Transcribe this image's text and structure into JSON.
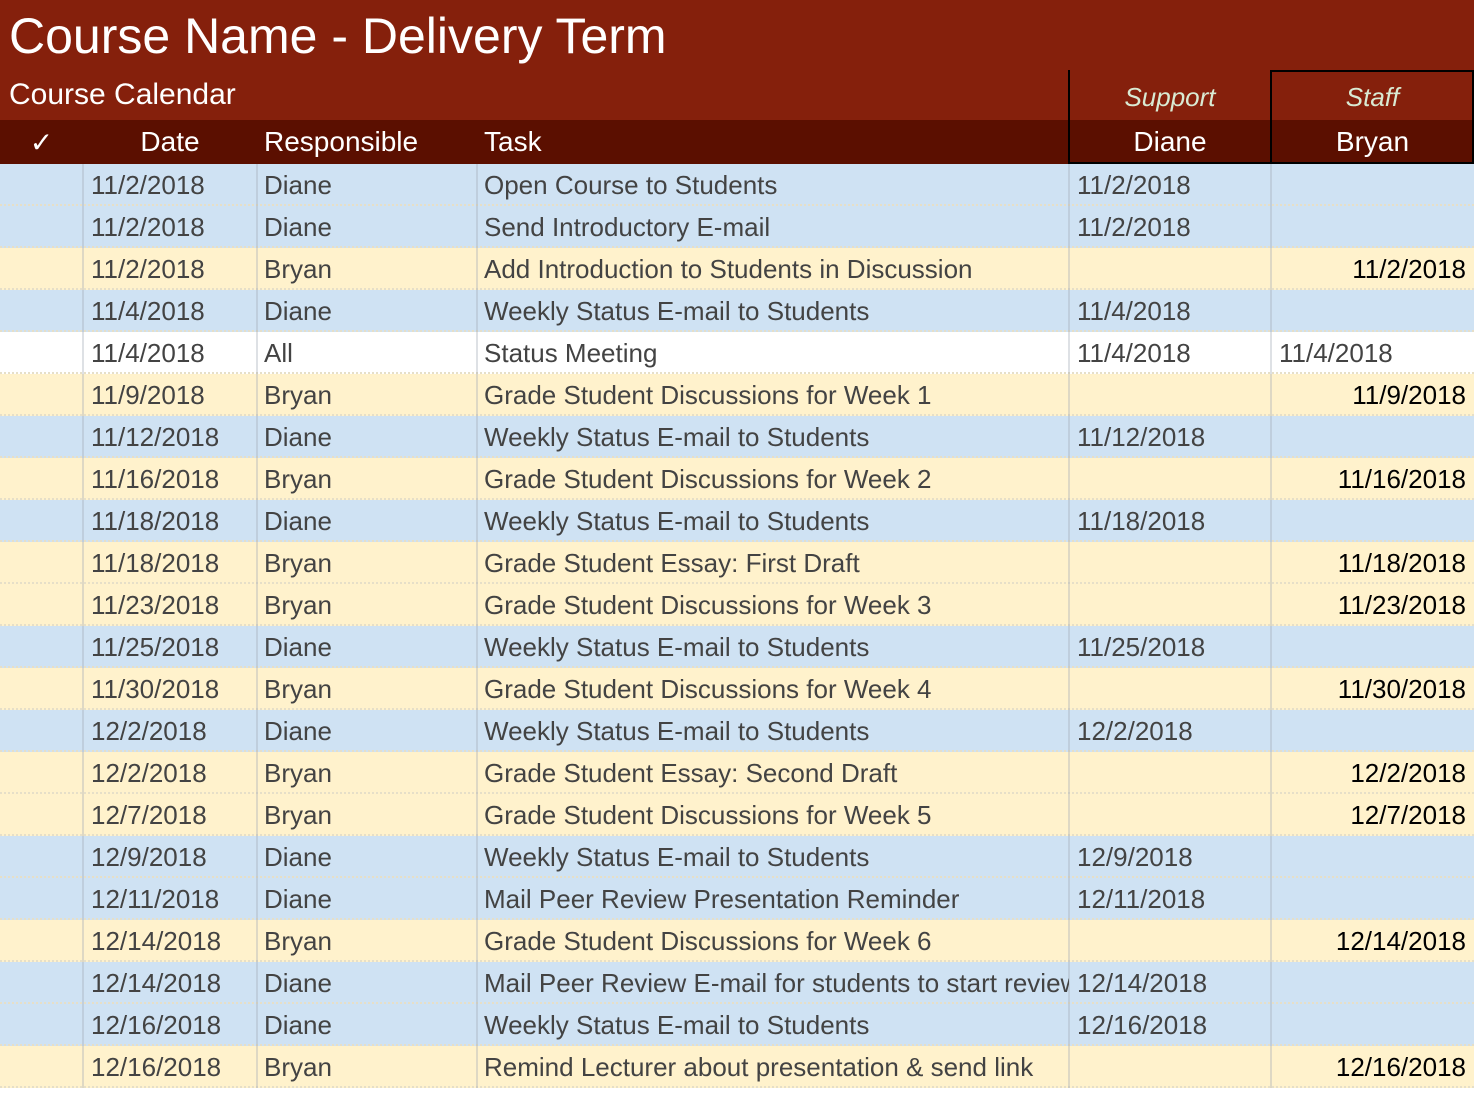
{
  "title": "Course Name - Delivery Term",
  "subtitle": "Course Calendar",
  "group_labels": {
    "support": "Support",
    "staff": "Staff"
  },
  "columns": {
    "check": "✓",
    "date": "Date",
    "responsible": "Responsible",
    "task": "Task",
    "support": "Diane",
    "staff": "Bryan"
  },
  "colors": {
    "title_bg": "#85200c",
    "header_bg": "#5b0f00",
    "diane_row": "#cfe2f3",
    "bryan_row": "#fff2cc",
    "all_row": "#ffffff"
  },
  "rows": [
    {
      "date": "11/2/2018",
      "responsible": "Diane",
      "task": "Open Course to Students",
      "support": "11/2/2018",
      "staff": ""
    },
    {
      "date": "11/2/2018",
      "responsible": "Diane",
      "task": "Send Introductory E-mail",
      "support": "11/2/2018",
      "staff": ""
    },
    {
      "date": "11/2/2018",
      "responsible": "Bryan",
      "task": "Add Introduction to Students in Discussion",
      "support": "",
      "staff": "11/2/2018"
    },
    {
      "date": "11/4/2018",
      "responsible": "Diane",
      "task": "Weekly Status E-mail to Students",
      "support": "11/4/2018",
      "staff": ""
    },
    {
      "date": "11/4/2018",
      "responsible": "All",
      "task": "Status Meeting",
      "support": "11/4/2018",
      "staff": "11/4/2018"
    },
    {
      "date": "11/9/2018",
      "responsible": "Bryan",
      "task": "Grade Student Discussions for Week 1",
      "support": "",
      "staff": "11/9/2018"
    },
    {
      "date": "11/12/2018",
      "responsible": "Diane",
      "task": "Weekly Status E-mail to Students",
      "support": "11/12/2018",
      "staff": ""
    },
    {
      "date": "11/16/2018",
      "responsible": "Bryan",
      "task": "Grade Student Discussions for Week 2",
      "support": "",
      "staff": "11/16/2018"
    },
    {
      "date": "11/18/2018",
      "responsible": "Diane",
      "task": "Weekly Status E-mail to Students",
      "support": "11/18/2018",
      "staff": ""
    },
    {
      "date": "11/18/2018",
      "responsible": "Bryan",
      "task": "Grade Student Essay: First Draft",
      "support": "",
      "staff": "11/18/2018"
    },
    {
      "date": "11/23/2018",
      "responsible": "Bryan",
      "task": "Grade Student Discussions for Week 3",
      "support": "",
      "staff": "11/23/2018"
    },
    {
      "date": "11/25/2018",
      "responsible": "Diane",
      "task": "Weekly Status E-mail to Students",
      "support": "11/25/2018",
      "staff": ""
    },
    {
      "date": "11/30/2018",
      "responsible": "Bryan",
      "task": "Grade Student Discussions for Week 4",
      "support": "",
      "staff": "11/30/2018"
    },
    {
      "date": "12/2/2018",
      "responsible": "Diane",
      "task": "Weekly Status E-mail to Students",
      "support": "12/2/2018",
      "staff": ""
    },
    {
      "date": "12/2/2018",
      "responsible": "Bryan",
      "task": "Grade Student Essay: Second Draft",
      "support": "",
      "staff": "12/2/2018"
    },
    {
      "date": "12/7/2018",
      "responsible": "Bryan",
      "task": "Grade Student Discussions for Week 5",
      "support": "",
      "staff": "12/7/2018"
    },
    {
      "date": "12/9/2018",
      "responsible": "Diane",
      "task": "Weekly Status E-mail to Students",
      "support": "12/9/2018",
      "staff": ""
    },
    {
      "date": "12/11/2018",
      "responsible": "Diane",
      "task": "Mail Peer Review Presentation Reminder",
      "support": "12/11/2018",
      "staff": ""
    },
    {
      "date": "12/14/2018",
      "responsible": "Bryan",
      "task": "Grade Student Discussions for Week 6",
      "support": "",
      "staff": "12/14/2018"
    },
    {
      "date": "12/14/2018",
      "responsible": "Diane",
      "task": "Mail Peer Review E-mail for students to start review",
      "support": "12/14/2018",
      "staff": ""
    },
    {
      "date": "12/16/2018",
      "responsible": "Diane",
      "task": "Weekly Status E-mail to Students",
      "support": "12/16/2018",
      "staff": ""
    },
    {
      "date": "12/16/2018",
      "responsible": "Bryan",
      "task": "Remind Lecturer about presentation & send link",
      "support": "",
      "staff": "12/16/2018"
    }
  ]
}
